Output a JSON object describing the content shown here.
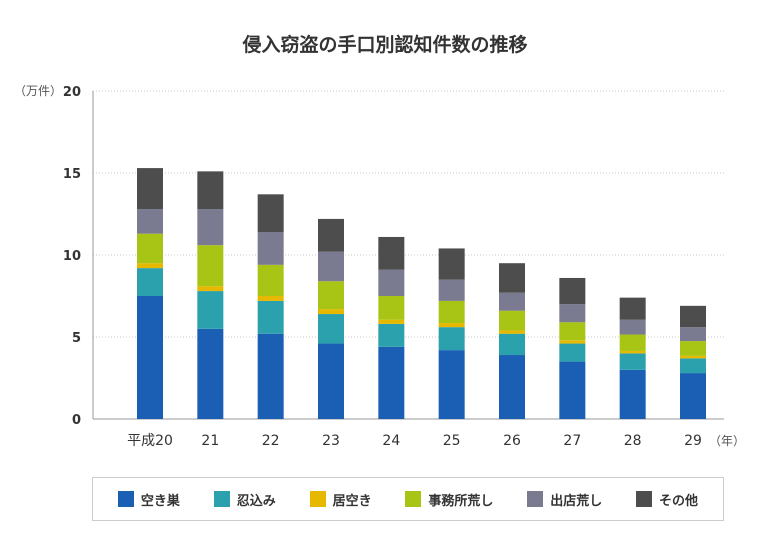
{
  "chart_data": {
    "type": "bar",
    "stacked": true,
    "title": "侵入窃盗の手口別認知件数の推移",
    "ylabel": "（万件）",
    "xlabel_suffix": "（年）",
    "ylim": [
      0,
      20
    ],
    "yticks": [
      "0",
      "5",
      "10",
      "15",
      "20"
    ],
    "categories": [
      "平成20",
      "21",
      "22",
      "23",
      "24",
      "25",
      "26",
      "27",
      "28",
      "29"
    ],
    "series": [
      {
        "name": "空き巣",
        "color": "#1a5fb4",
        "values": [
          7.5,
          5.5,
          5.2,
          4.6,
          4.4,
          4.2,
          3.9,
          3.5,
          3.0,
          2.8
        ]
      },
      {
        "name": "忍込み",
        "color": "#2aa1ad",
        "values": [
          1.7,
          2.3,
          2.0,
          1.8,
          1.4,
          1.4,
          1.3,
          1.1,
          1.0,
          0.9
        ]
      },
      {
        "name": "居空き",
        "color": "#e6b800",
        "values": [
          0.3,
          0.3,
          0.3,
          0.3,
          0.25,
          0.25,
          0.2,
          0.2,
          0.15,
          0.15
        ]
      },
      {
        "name": "事務所荒し",
        "color": "#a8c414",
        "values": [
          1.8,
          2.5,
          1.9,
          1.7,
          1.45,
          1.35,
          1.2,
          1.1,
          1.0,
          0.9
        ]
      },
      {
        "name": "出店荒し",
        "color": "#7a7a90",
        "values": [
          1.5,
          2.2,
          2.0,
          1.8,
          1.6,
          1.3,
          1.1,
          1.1,
          0.9,
          0.85
        ]
      },
      {
        "name": "その他",
        "color": "#4d4d4d",
        "values": [
          2.5,
          2.3,
          2.3,
          2.0,
          2.0,
          1.9,
          1.8,
          1.6,
          1.35,
          1.3
        ]
      }
    ]
  }
}
